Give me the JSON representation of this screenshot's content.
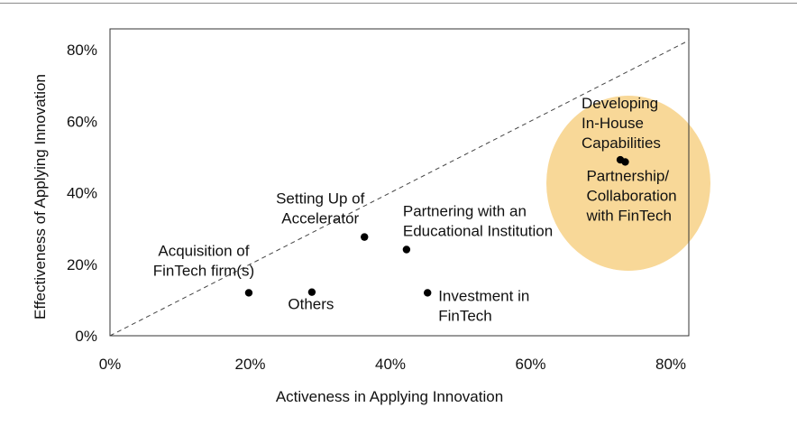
{
  "chart_data": {
    "type": "scatter",
    "title": "",
    "xlabel": "Activeness in Applying Innovation",
    "ylabel": "Effectiveness of Applying Innovation",
    "xlim": [
      0,
      82
    ],
    "ylim": [
      0,
      82
    ],
    "x_ticks": [
      0,
      20,
      40,
      60,
      80
    ],
    "y_ticks": [
      0,
      20,
      40,
      60,
      80
    ],
    "x_tick_labels": [
      "0%",
      "20%",
      "40%",
      "60%",
      "80%"
    ],
    "y_tick_labels": [
      "0%",
      "20%",
      "40%",
      "60%",
      "80%"
    ],
    "grid": false,
    "reference_line": "diagonal y = x, dashed",
    "highlight_color": "#f8d898",
    "points": [
      {
        "label": [
          "Acquisition of",
          "FinTech firm(s)"
        ],
        "x": 19.8,
        "y": 12.0
      },
      {
        "label": [
          "Others"
        ],
        "x": 28.8,
        "y": 12.2
      },
      {
        "label": [
          "Setting Up of",
          "Accelerator"
        ],
        "x": 36.3,
        "y": 27.6
      },
      {
        "label": [
          "Partnering with an",
          "Educational Institution"
        ],
        "x": 42.3,
        "y": 24.1
      },
      {
        "label": [
          "Investment in",
          "FinTech"
        ],
        "x": 45.3,
        "y": 12.0
      },
      {
        "label": [
          "Developing",
          "In-House",
          "Capabilities"
        ],
        "x": 72.8,
        "y": 49.2
      },
      {
        "label": [
          "Partnership/",
          "Collaboration",
          "with FinTech"
        ],
        "x": 73.5,
        "y": 48.6
      }
    ]
  }
}
